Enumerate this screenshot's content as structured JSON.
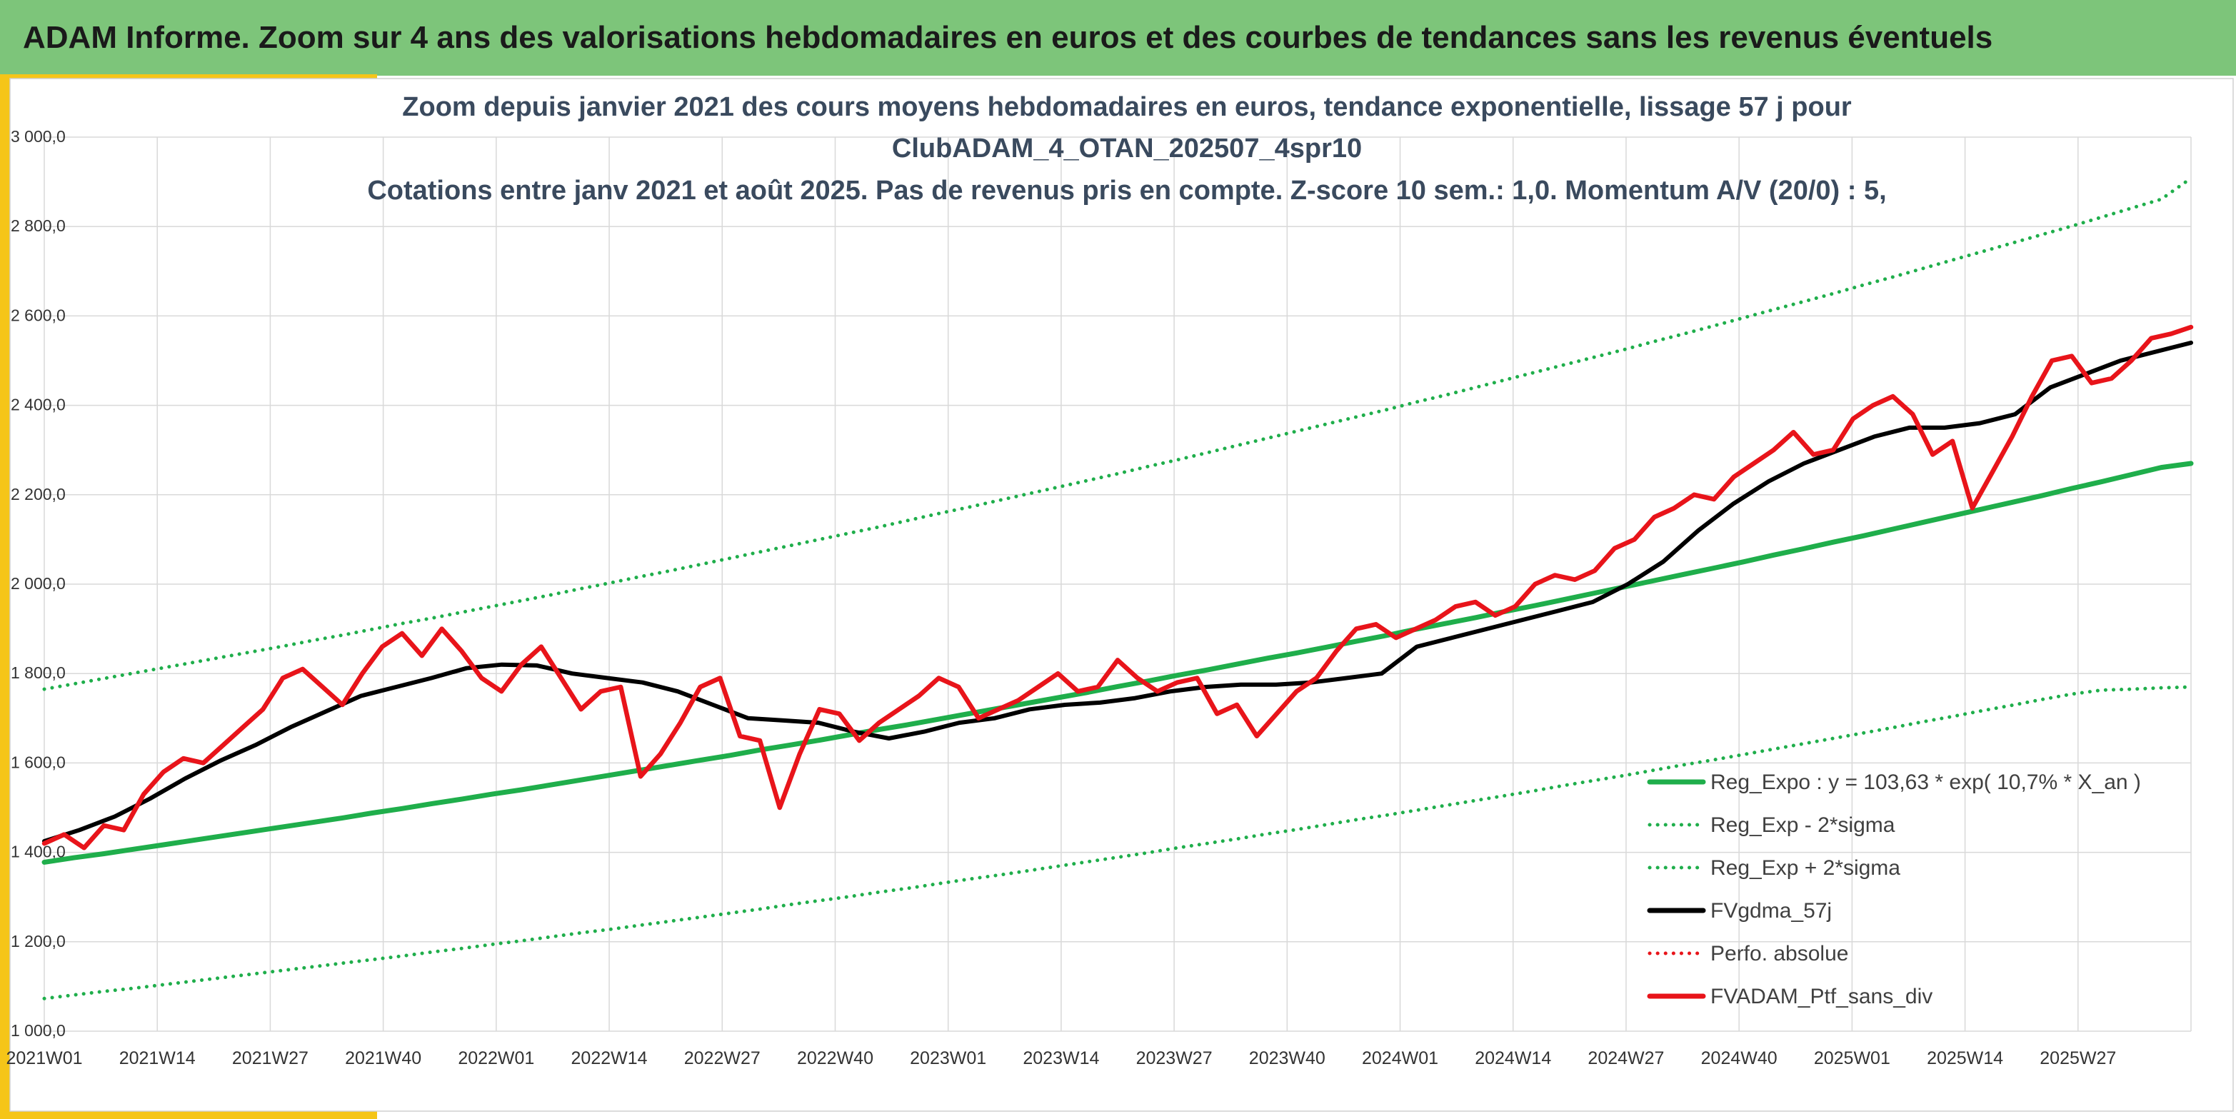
{
  "banner": {
    "title": "ADAM Informe. Zoom sur 4 ans des valorisations hebdomadaires en euros et des courbes de tendances sans les revenus éventuels",
    "color": "#7dc57a"
  },
  "chart_data": {
    "type": "line",
    "title_lines": [
      "Zoom depuis janvier 2021 des cours moyens hebdomadaires en euros, tendance exponentielle, lissage 57 j pour",
      "ClubADAM_4_OTAN_202507_4spr10",
      "Cotations entre janv 2021 et août 2025. Pas de revenus pris en compte. Z-score 10 sem.: 1,0. Momentum A/V (20/0) : 5,"
    ],
    "title_color": "#3a4a5e",
    "xlabel": "",
    "ylabel": "",
    "ylim": [
      1000,
      3000
    ],
    "yticks": [
      "1 000,0",
      "1 200,0",
      "1 400,0",
      "1 600,0",
      "1 800,0",
      "2 000,0",
      "2 200,0",
      "2 400,0",
      "2 600,0",
      "2 800,0",
      "3 000,0"
    ],
    "xtick_labels": [
      "2021W01",
      "2021W14",
      "2021W27",
      "2021W40",
      "2022W01",
      "2022W14",
      "2022W27",
      "2022W40",
      "2023W01",
      "2023W14",
      "2023W27",
      "2023W40",
      "2024W01",
      "2024W14",
      "2024W27",
      "2024W40",
      "2025W01",
      "2025W14",
      "2025W27"
    ],
    "grid": true,
    "legend_position": "bottom-right, inside plot",
    "reg_expo": {
      "start": 1378,
      "end": 2270
    },
    "series": [
      {
        "name": "Reg_Expo : y = 103,63 * exp( 10,7% *  X_an )",
        "color": "#1fae4b",
        "style": "solid",
        "values": [
          1378,
          1388,
          1397,
          1407,
          1417,
          1427,
          1437,
          1447,
          1457,
          1467,
          1477,
          1488,
          1498,
          1509,
          1519,
          1530,
          1540,
          1551,
          1562,
          1573,
          1584,
          1595,
          1606,
          1617,
          1629,
          1640,
          1651,
          1663,
          1675,
          1686,
          1698,
          1710,
          1722,
          1734,
          1746,
          1758,
          1771,
          1783,
          1796,
          1808,
          1821,
          1834,
          1846,
          1859,
          1872,
          1885,
          1899,
          1912,
          1925,
          1939,
          1952,
          1966,
          1980,
          1994,
          2008,
          2022,
          2036,
          2050,
          2065,
          2079,
          2094,
          2108,
          2123,
          2138,
          2153,
          2168,
          2183,
          2198,
          2214,
          2229,
          2245,
          2261,
          2270
        ]
      },
      {
        "name": "Reg_Exp - 2*sigma",
        "color": "#1fae4b",
        "style": "dotted",
        "values": [
          1073,
          1081,
          1089,
          1096,
          1104,
          1112,
          1120,
          1128,
          1136,
          1144,
          1152,
          1160,
          1168,
          1177,
          1185,
          1194,
          1202,
          1211,
          1220,
          1228,
          1237,
          1246,
          1255,
          1264,
          1273,
          1283,
          1292,
          1301,
          1311,
          1320,
          1330,
          1340,
          1349,
          1359,
          1369,
          1379,
          1389,
          1399,
          1410,
          1420,
          1430,
          1441,
          1451,
          1462,
          1473,
          1483,
          1494,
          1505,
          1516,
          1527,
          1538,
          1550,
          1561,
          1572,
          1584,
          1596,
          1607,
          1619,
          1631,
          1643,
          1655,
          1667,
          1679,
          1692,
          1704,
          1717,
          1729,
          1742,
          1754,
          1763,
          1765,
          1768,
          1770
        ]
      },
      {
        "name": "Reg_Exp + 2*sigma",
        "color": "#1fae4b",
        "style": "dotted",
        "values": [
          1765,
          1777,
          1789,
          1801,
          1813,
          1825,
          1837,
          1849,
          1861,
          1874,
          1886,
          1899,
          1912,
          1924,
          1937,
          1950,
          1963,
          1976,
          1990,
          2003,
          2017,
          2030,
          2044,
          2058,
          2072,
          2086,
          2100,
          2114,
          2128,
          2143,
          2158,
          2172,
          2187,
          2202,
          2217,
          2232,
          2247,
          2263,
          2278,
          2294,
          2310,
          2326,
          2342,
          2358,
          2374,
          2390,
          2407,
          2423,
          2440,
          2457,
          2474,
          2491,
          2508,
          2525,
          2543,
          2560,
          2578,
          2596,
          2614,
          2632,
          2650,
          2669,
          2687,
          2706,
          2725,
          2744,
          2763,
          2782,
          2801,
          2821,
          2841,
          2861,
          2908
        ]
      },
      {
        "name": "FVgdma_57j",
        "color": "#000000",
        "style": "solid",
        "values": [
          1425,
          1450,
          1480,
          1520,
          1565,
          1605,
          1640,
          1680,
          1715,
          1750,
          1770,
          1790,
          1812,
          1820,
          1818,
          1800,
          1790,
          1780,
          1760,
          1730,
          1700,
          1695,
          1690,
          1670,
          1655,
          1670,
          1690,
          1700,
          1720,
          1730,
          1735,
          1745,
          1760,
          1770,
          1775,
          1775,
          1780,
          1790,
          1800,
          1860,
          1880,
          1900,
          1920,
          1940,
          1960,
          2000,
          2050,
          2120,
          2180,
          2230,
          2270,
          2300,
          2330,
          2350,
          2350,
          2360,
          2380,
          2440,
          2470,
          2500,
          2520,
          2540
        ]
      },
      {
        "name": "Perfo. absolue",
        "color": "#e8141a",
        "style": "dotted",
        "values": []
      },
      {
        "name": "FVADAM_Ptf_sans_div",
        "color": "#e8141a",
        "style": "solid",
        "values": [
          1420,
          1440,
          1410,
          1460,
          1450,
          1530,
          1580,
          1610,
          1600,
          1640,
          1680,
          1720,
          1790,
          1810,
          1770,
          1730,
          1800,
          1860,
          1890,
          1840,
          1900,
          1850,
          1790,
          1760,
          1820,
          1860,
          1790,
          1720,
          1760,
          1770,
          1570,
          1620,
          1690,
          1770,
          1790,
          1660,
          1650,
          1500,
          1620,
          1720,
          1710,
          1650,
          1690,
          1720,
          1750,
          1790,
          1770,
          1700,
          1720,
          1740,
          1770,
          1800,
          1760,
          1770,
          1830,
          1790,
          1760,
          1780,
          1790,
          1710,
          1730,
          1660,
          1710,
          1760,
          1790,
          1850,
          1900,
          1910,
          1880,
          1900,
          1920,
          1950,
          1960,
          1930,
          1950,
          2000,
          2020,
          2010,
          2030,
          2080,
          2100,
          2150,
          2170,
          2200,
          2190,
          2240,
          2270,
          2300,
          2340,
          2290,
          2300,
          2370,
          2400,
          2420,
          2380,
          2290,
          2320,
          2170,
          2250,
          2330,
          2420,
          2500,
          2510,
          2450,
          2460,
          2500,
          2550,
          2560,
          2575
        ]
      }
    ]
  }
}
